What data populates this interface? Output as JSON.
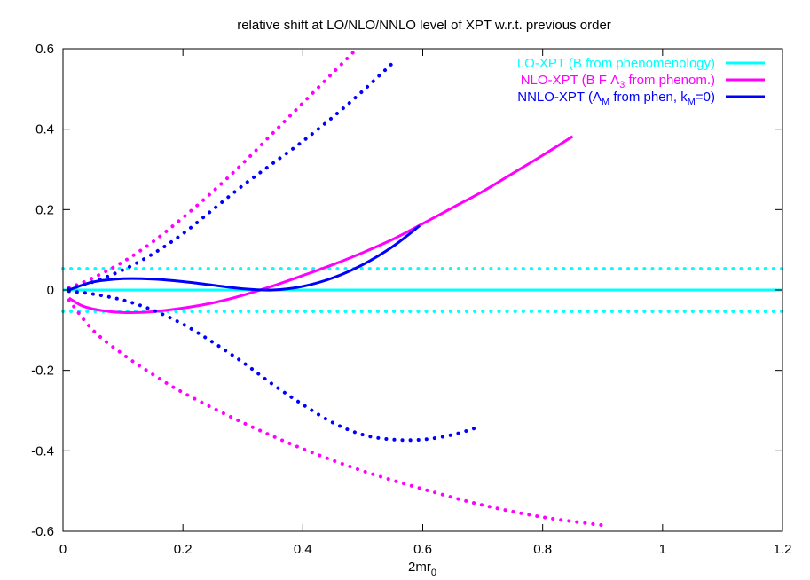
{
  "chart_data": {
    "type": "line",
    "title": "relative shift at LO/NLO/NNLO level of XPT w.r.t. previous order",
    "xlabel_main": "2mr",
    "xlabel_sub": "0",
    "ylabel": "",
    "xlim": [
      0,
      1.2
    ],
    "ylim": [
      -0.6,
      0.6
    ],
    "xticks": [
      0,
      0.2,
      0.4,
      0.6,
      0.8,
      1,
      1.2
    ],
    "yticks": [
      0.6,
      0.4,
      0.2,
      0,
      -0.2,
      -0.4,
      -0.6
    ],
    "xtick_labels": [
      "0",
      "0.2",
      "0.4",
      "0.6",
      "0.8",
      "1",
      "1.2"
    ],
    "ytick_labels": [
      "0.6",
      "0.4",
      "0.2",
      "0",
      "-0.2",
      "-0.4",
      "-0.6"
    ],
    "grid": false,
    "legend_position": "top-right",
    "legend": [
      {
        "parts": [
          {
            "t": "LO-XPT (B from phenomenology)"
          }
        ],
        "color": "#00ffff"
      },
      {
        "parts": [
          {
            "t": "NLO-XPT (B F Λ"
          },
          {
            "t": "3",
            "sub": true
          },
          {
            "t": " from phenom.)"
          }
        ],
        "color": "#ff00ff"
      },
      {
        "parts": [
          {
            "t": "NNLO-XPT (Λ"
          },
          {
            "t": "M",
            "sub": true
          },
          {
            "t": " from phen, k"
          },
          {
            "t": "M",
            "sub": true
          },
          {
            "t": "=0)"
          }
        ],
        "color": "#0000ff"
      }
    ],
    "series": [
      {
        "color": "#00ffff",
        "style": "solid",
        "x": [
          0,
          1.2
        ],
        "y": [
          0,
          0
        ]
      },
      {
        "color": "#00ffff",
        "style": "dotted",
        "x": [
          0,
          1.2
        ],
        "y": [
          0.053,
          0.053
        ]
      },
      {
        "color": "#00ffff",
        "style": "dotted",
        "x": [
          0,
          1.2
        ],
        "y": [
          -0.053,
          -0.053
        ]
      },
      {
        "color": "#ff00ff",
        "style": "solid",
        "x": [
          0.01,
          0.03,
          0.05,
          0.08,
          0.1,
          0.12,
          0.15,
          0.2,
          0.25,
          0.3,
          0.35,
          0.4,
          0.45,
          0.5,
          0.55,
          0.6,
          0.65,
          0.7,
          0.75,
          0.8,
          0.85
        ],
        "y": [
          -0.02,
          -0.038,
          -0.047,
          -0.054,
          -0.056,
          -0.056,
          -0.054,
          -0.045,
          -0.032,
          -0.013,
          0.01,
          0.036,
          0.063,
          0.093,
          0.126,
          0.165,
          0.205,
          0.245,
          0.29,
          0.335,
          0.382
        ]
      },
      {
        "color": "#ff00ff",
        "style": "dotted",
        "x": [
          0.01,
          0.05,
          0.1,
          0.15,
          0.2,
          0.25,
          0.3,
          0.35,
          0.4,
          0.45,
          0.49
        ],
        "y": [
          0.005,
          0.03,
          0.07,
          0.12,
          0.18,
          0.245,
          0.315,
          0.39,
          0.465,
          0.54,
          0.6
        ]
      },
      {
        "color": "#ff00ff",
        "style": "dotted",
        "x": [
          0.01,
          0.05,
          0.1,
          0.15,
          0.2,
          0.3,
          0.4,
          0.5,
          0.6,
          0.7,
          0.8,
          0.9
        ],
        "y": [
          -0.025,
          -0.1,
          -0.16,
          -0.21,
          -0.255,
          -0.33,
          -0.395,
          -0.45,
          -0.495,
          -0.535,
          -0.565,
          -0.585
        ]
      },
      {
        "color": "#0000ff",
        "style": "solid",
        "x": [
          0.01,
          0.05,
          0.1,
          0.15,
          0.2,
          0.25,
          0.3,
          0.35,
          0.4,
          0.45,
          0.5,
          0.55,
          0.595
        ],
        "y": [
          0.0,
          0.02,
          0.028,
          0.027,
          0.021,
          0.012,
          0.003,
          0.0,
          0.009,
          0.03,
          0.063,
          0.108,
          0.16
        ]
      },
      {
        "color": "#0000ff",
        "style": "dotted",
        "x": [
          0.01,
          0.05,
          0.1,
          0.15,
          0.2,
          0.25,
          0.3,
          0.35,
          0.4,
          0.45,
          0.5,
          0.55
        ],
        "y": [
          0.003,
          0.02,
          0.05,
          0.09,
          0.14,
          0.2,
          0.26,
          0.315,
          0.37,
          0.43,
          0.495,
          0.565
        ]
      },
      {
        "color": "#0000ff",
        "style": "dotted",
        "x": [
          0.01,
          0.05,
          0.1,
          0.15,
          0.2,
          0.25,
          0.3,
          0.35,
          0.4,
          0.45,
          0.5,
          0.55,
          0.6,
          0.65,
          0.695
        ],
        "y": [
          -0.003,
          -0.01,
          -0.025,
          -0.05,
          -0.085,
          -0.13,
          -0.18,
          -0.235,
          -0.285,
          -0.33,
          -0.36,
          -0.372,
          -0.372,
          -0.36,
          -0.34
        ]
      }
    ]
  }
}
